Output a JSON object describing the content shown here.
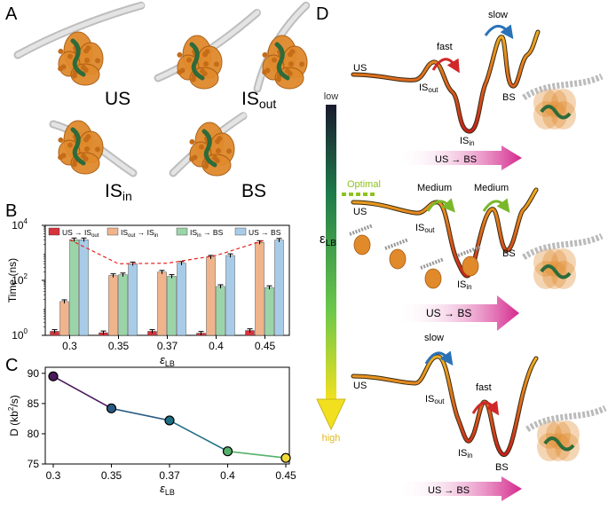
{
  "panel_labels": {
    "a": "A",
    "b": "B",
    "c": "C",
    "d": "D"
  },
  "panel_a": {
    "structures": [
      "US",
      "IS",
      "IS",
      "BS"
    ],
    "sub_out": "out",
    "sub_in": "in"
  },
  "colors": {
    "us_is_out": "#d8323c",
    "is_out_is_in": "#f0b48c",
    "is_in_bs": "#9bd4a8",
    "us_bs": "#a8cce8",
    "trend": "#e8231e",
    "protein": "#e08a2c",
    "dna": "#d8d8d8",
    "green_segment": "#2e6b3a"
  },
  "chart_data": [
    {
      "type": "bar",
      "panel": "B",
      "ylabel": "Time (ns)",
      "xlabel": "ε",
      "xlabel_sub": "LB",
      "yscale": "log",
      "ylim": [
        1,
        10000
      ],
      "yticks": [
        "10",
        "10",
        "10"
      ],
      "ytick_exps": [
        "0",
        "2",
        "4"
      ],
      "categories": [
        "0.3",
        "0.35",
        "0.37",
        "0.4",
        "0.45"
      ],
      "series": [
        {
          "name": "US → IS",
          "sub": "out",
          "values": [
            1.4,
            1.25,
            1.4,
            1.2,
            1.5
          ]
        },
        {
          "name": "IS",
          "sub": "out",
          "name2": " → IS",
          "sub2": "in",
          "values": [
            17,
            150,
            200,
            700,
            2400
          ]
        },
        {
          "name": "IS",
          "sub": "in",
          "name2": " → BS",
          "sub2": "",
          "values": [
            3000,
            160,
            140,
            60,
            55
          ]
        },
        {
          "name": "US → BS",
          "sub": "",
          "values": [
            3000,
            400,
            420,
            800,
            2900
          ]
        }
      ],
      "trend": [
        3000,
        400,
        420,
        800,
        2900
      ]
    },
    {
      "type": "line",
      "panel": "C",
      "ylabel": "D (kb",
      "ylabel_sup": "2",
      "ylabel_end": "/s)",
      "xlabel": "ε",
      "xlabel_sub": "LB",
      "x": [
        "0.3",
        "0.35",
        "0.37",
        "0.4",
        "0.45"
      ],
      "values": [
        89.5,
        84.2,
        82.2,
        77.1,
        76.0
      ],
      "ylim": [
        75,
        91
      ],
      "yticks": [
        "75",
        "80",
        "85",
        "90"
      ],
      "point_colors": [
        "#4a1a5c",
        "#2a5a82",
        "#1e6e84",
        "#55b06a",
        "#f0d83a"
      ]
    }
  ],
  "panel_d": {
    "axis_symbol": "ε",
    "axis_sub": "LB",
    "low": "low",
    "high": "high",
    "optimal": "Optimal",
    "states": {
      "us": "US",
      "is": "IS",
      "out": "out",
      "in": "in",
      "bs": "BS"
    },
    "top": {
      "left_label": "fast",
      "right_label": "slow"
    },
    "mid": {
      "left_label": "Medium",
      "right_label": "Medium"
    },
    "bot": {
      "left_label": "slow",
      "right_label": "fast"
    },
    "arrow_label": "US → BS"
  }
}
